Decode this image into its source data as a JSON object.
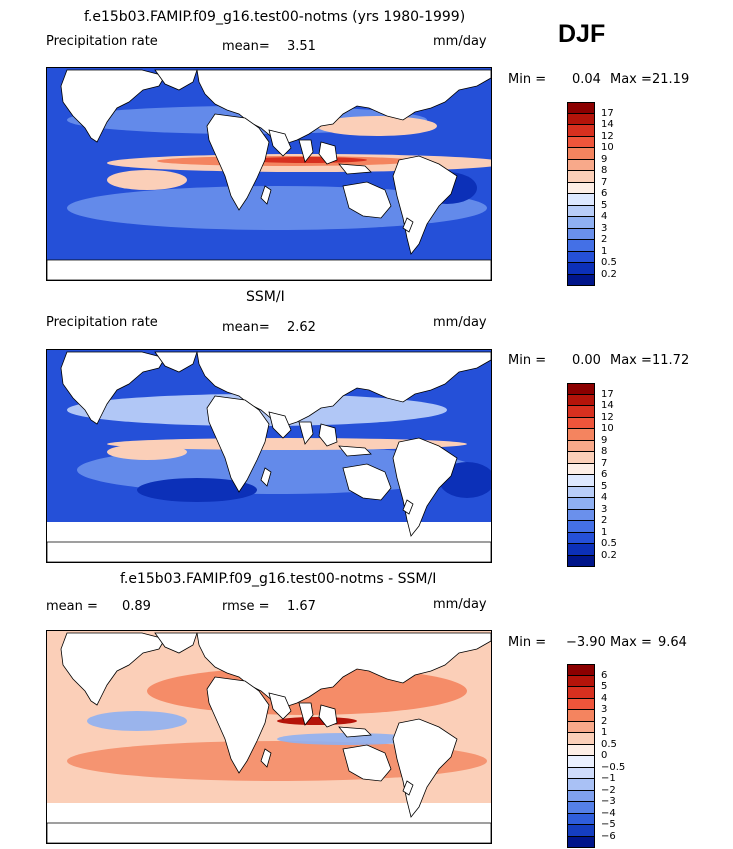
{
  "season": "DJF",
  "top_title": "f.e15b03.FAMIP.f09_g16.test00-notms (yrs 1980-1999)",
  "panels": [
    {
      "id": "model",
      "variable": "Precipitation rate",
      "mean_label": "mean=",
      "mean_value": "3.51",
      "units": "mm/day",
      "min_label": "Min =",
      "min_value": "0.04",
      "max_label": "Max =",
      "max_value": "21.19"
    },
    {
      "id": "obs",
      "title": "SSM/I",
      "variable": "Precipitation rate",
      "mean_label": "mean=",
      "mean_value": "2.62",
      "units": "mm/day",
      "min_label": "Min =",
      "min_value": "0.00",
      "max_label": "Max =",
      "max_value": "11.72"
    },
    {
      "id": "diff",
      "title": "f.e15b03.FAMIP.f09_g16.test00-notms - SSM/I",
      "mean_label": "mean =",
      "mean_value": "0.89",
      "rmse_label": "rmse =",
      "rmse_value": "1.67",
      "units": "mm/day",
      "min_label": "Min =",
      "min_value": "−3.90",
      "max_label": "Max =",
      "max_value": "9.64"
    }
  ],
  "colorbars": {
    "precip": {
      "labels": [
        "17",
        "14",
        "12",
        "10",
        "9",
        "8",
        "7",
        "6",
        "5",
        "4",
        "3",
        "2",
        "1",
        "0.5",
        "0.2"
      ],
      "colors": [
        "#8b0000",
        "#b4140a",
        "#d7301f",
        "#ef553b",
        "#f4845f",
        "#f8a98a",
        "#fbcfb8",
        "#fdeee6",
        "#dde8ff",
        "#b8cdf8",
        "#8fb0f2",
        "#6a90ec",
        "#4470e6",
        "#2550d8",
        "#0c30b8",
        "#00158a"
      ]
    },
    "diff": {
      "labels": [
        "6",
        "5",
        "4",
        "3",
        "2",
        "1",
        "0.5",
        "0",
        "−0.5",
        "−1",
        "−2",
        "−3",
        "−4",
        "−5",
        "−6"
      ],
      "colors": [
        "#8b0000",
        "#b4140a",
        "#d7301f",
        "#ef553b",
        "#f4845f",
        "#f8a98a",
        "#fbcfb8",
        "#fdeee6",
        "#eaf0ff",
        "#cfdcfb",
        "#a9c1f5",
        "#7fa0ee",
        "#5580e8",
        "#2f5edc",
        "#153ec0",
        "#00158a"
      ]
    }
  },
  "map_colors": {
    "ocean_low": "#2550d8",
    "ocean_mid": "#6a90ec",
    "ocean_light": "#b8cdf8",
    "wet_1": "#fbcfb8",
    "wet_2": "#f4845f",
    "wet_3": "#d7301f",
    "deep_dry": "#0c30b8",
    "diff_pos": "#f4845f",
    "diff_pos_light": "#fbcfb8",
    "diff_strong": "#b4140a",
    "diff_neg": "#8fb0f2",
    "land": "#ffffff"
  }
}
